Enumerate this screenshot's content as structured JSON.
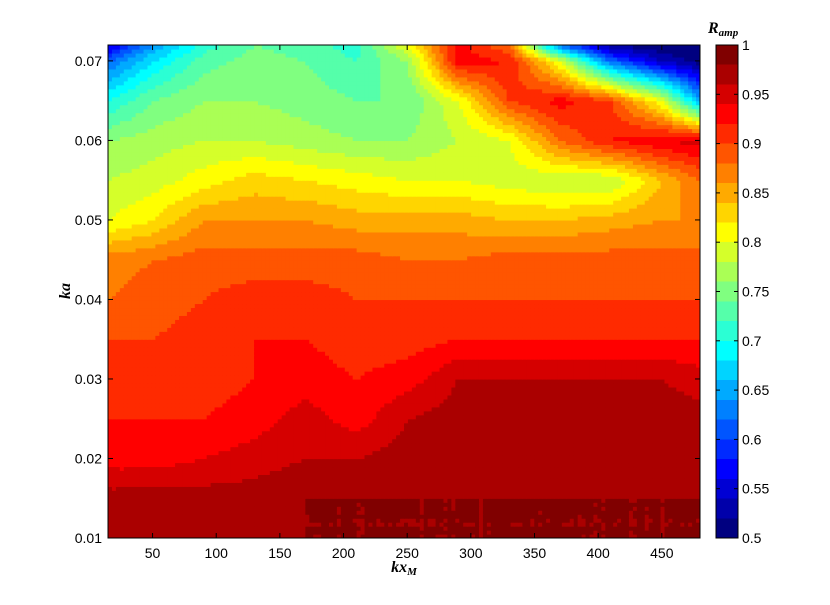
{
  "chart_data": {
    "type": "heatmap",
    "subtype": "filled-contour",
    "title": "",
    "xlabel": "kx",
    "xlabel_sub": "M",
    "ylabel": "ka",
    "colorbar_label": "R",
    "colorbar_label_sub": "amp",
    "xlim": [
      15,
      480
    ],
    "ylim": [
      0.01,
      0.072
    ],
    "clim": [
      0.5,
      1.0
    ],
    "colormap": "jet",
    "contour_levels": 25,
    "grid": false,
    "x_ticks": [
      50,
      100,
      150,
      200,
      250,
      300,
      350,
      400,
      450
    ],
    "x_tick_labels": [
      "50",
      "100",
      "150",
      "200",
      "250",
      "300",
      "350",
      "400",
      "450"
    ],
    "y_ticks": [
      0.01,
      0.02,
      0.03,
      0.04,
      0.05,
      0.06,
      0.07
    ],
    "y_tick_labels": [
      "0.01",
      "0.02",
      "0.03",
      "0.04",
      "0.05",
      "0.06",
      "0.07"
    ],
    "colorbar_ticks": [
      0.5,
      0.55,
      0.6,
      0.65,
      0.7,
      0.75,
      0.8,
      0.85,
      0.9,
      0.95,
      1.0
    ],
    "colorbar_tick_labels": [
      "0.5",
      "0.55",
      "0.6",
      "0.65",
      "0.7",
      "0.75",
      "0.8",
      "0.85",
      "0.9",
      "0.95",
      "1"
    ],
    "x": [
      15,
      50,
      90,
      130,
      170,
      210,
      250,
      290,
      330,
      370,
      410,
      450,
      480
    ],
    "y": [
      0.01,
      0.015,
      0.02,
      0.025,
      0.03,
      0.035,
      0.04,
      0.045,
      0.05,
      0.055,
      0.06,
      0.065,
      0.07,
      0.072
    ],
    "z": [
      [
        0.98,
        0.98,
        0.98,
        0.98,
        0.98,
        0.98,
        0.98,
        0.98,
        0.98,
        0.98,
        0.98,
        0.98,
        0.98
      ],
      [
        0.97,
        0.97,
        0.97,
        0.97,
        0.98,
        0.98,
        0.98,
        0.98,
        0.98,
        0.98,
        0.98,
        0.98,
        0.98
      ],
      [
        0.93,
        0.93,
        0.94,
        0.95,
        0.96,
        0.96,
        0.97,
        0.97,
        0.97,
        0.97,
        0.97,
        0.97,
        0.97
      ],
      [
        0.92,
        0.92,
        0.92,
        0.93,
        0.95,
        0.93,
        0.96,
        0.97,
        0.97,
        0.97,
        0.97,
        0.97,
        0.97
      ],
      [
        0.91,
        0.91,
        0.91,
        0.92,
        0.93,
        0.92,
        0.93,
        0.96,
        0.96,
        0.96,
        0.96,
        0.96,
        0.95
      ],
      [
        0.9,
        0.9,
        0.91,
        0.92,
        0.92,
        0.91,
        0.91,
        0.92,
        0.92,
        0.92,
        0.92,
        0.92,
        0.92
      ],
      [
        0.88,
        0.89,
        0.9,
        0.91,
        0.91,
        0.9,
        0.9,
        0.9,
        0.9,
        0.9,
        0.9,
        0.9,
        0.9
      ],
      [
        0.87,
        0.88,
        0.89,
        0.89,
        0.89,
        0.89,
        0.88,
        0.88,
        0.89,
        0.89,
        0.89,
        0.89,
        0.89
      ],
      [
        0.8,
        0.82,
        0.86,
        0.86,
        0.86,
        0.85,
        0.85,
        0.85,
        0.84,
        0.84,
        0.85,
        0.86,
        0.86
      ],
      [
        0.78,
        0.79,
        0.81,
        0.83,
        0.82,
        0.81,
        0.8,
        0.8,
        0.79,
        0.78,
        0.78,
        0.84,
        0.88
      ],
      [
        0.76,
        0.77,
        0.78,
        0.78,
        0.77,
        0.76,
        0.76,
        0.78,
        0.8,
        0.88,
        0.92,
        0.94,
        0.95
      ],
      [
        0.7,
        0.74,
        0.76,
        0.76,
        0.75,
        0.74,
        0.74,
        0.8,
        0.9,
        0.93,
        0.9,
        0.8,
        0.65
      ],
      [
        0.62,
        0.68,
        0.73,
        0.75,
        0.74,
        0.72,
        0.76,
        0.93,
        0.92,
        0.8,
        0.62,
        0.54,
        0.51
      ],
      [
        0.55,
        0.64,
        0.71,
        0.74,
        0.73,
        0.71,
        0.8,
        0.93,
        0.88,
        0.62,
        0.52,
        0.5,
        0.5
      ]
    ]
  }
}
